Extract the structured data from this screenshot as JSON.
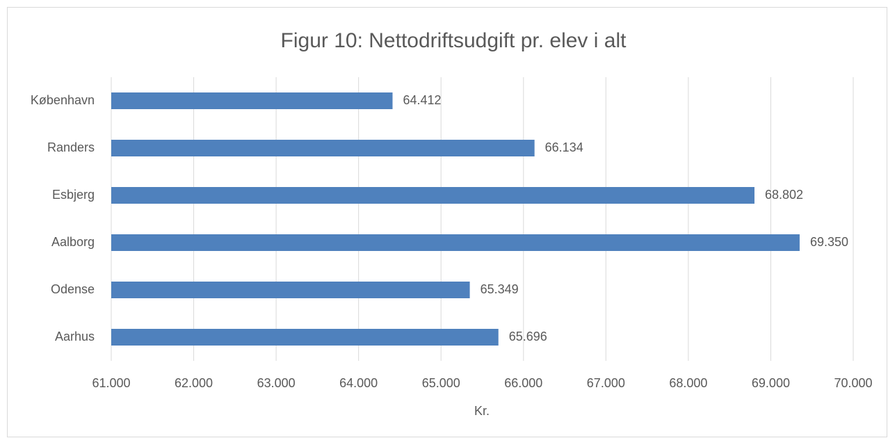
{
  "chart_data": {
    "type": "bar",
    "orientation": "horizontal",
    "title": "Figur 10: Nettodriftsudgift pr. elev i alt",
    "x_label": "Kr.",
    "categories": [
      "København",
      "Randers",
      "Esbjerg",
      "Aalborg",
      "Odense",
      "Aarhus"
    ],
    "values": [
      64412,
      66134,
      68802,
      69350,
      65349,
      65696
    ],
    "value_labels": [
      "64.412",
      "66.134",
      "68.802",
      "69.350",
      "65.349",
      "65.696"
    ],
    "color": "#4f81bd",
    "xlim": [
      61000,
      70000
    ],
    "xticks": [
      {
        "value": 61000,
        "label": "61.000"
      },
      {
        "value": 62000,
        "label": "62.000"
      },
      {
        "value": 63000,
        "label": "63.000"
      },
      {
        "value": 64000,
        "label": "64.000"
      },
      {
        "value": 65000,
        "label": "65.000"
      },
      {
        "value": 66000,
        "label": "66.000"
      },
      {
        "value": 67000,
        "label": "67.000"
      },
      {
        "value": 68000,
        "label": "68.000"
      },
      {
        "value": 69000,
        "label": "69.000"
      },
      {
        "value": 70000,
        "label": "70.000"
      }
    ],
    "grid": true
  }
}
